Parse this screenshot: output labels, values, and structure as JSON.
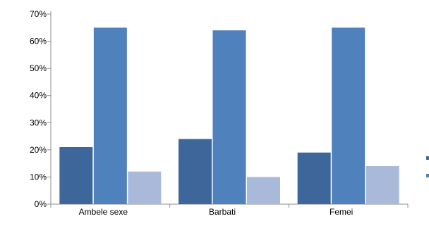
{
  "chart_data": {
    "type": "bar",
    "categories": [
      "Ambele sexe",
      "Barbati",
      "Femei"
    ],
    "series": [
      {
        "values": [
          21,
          24,
          19
        ],
        "color": "#3d679a"
      },
      {
        "values": [
          65,
          64,
          65
        ],
        "color": "#4f81bd"
      },
      {
        "values": [
          12,
          10,
          14
        ],
        "color": "#a9b9da"
      }
    ],
    "ylim": [
      0,
      70
    ],
    "yticks": [
      0,
      10,
      20,
      30,
      40,
      50,
      60,
      70
    ],
    "ytick_format": "percent",
    "grid": false,
    "legend": "right (labels not legible)"
  }
}
